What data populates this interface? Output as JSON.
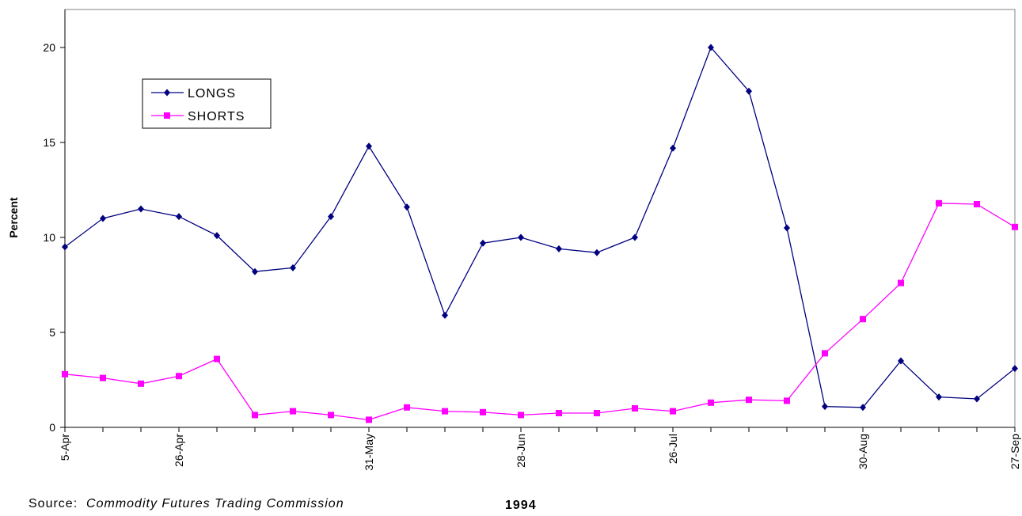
{
  "chart_data": {
    "type": "line",
    "title": "",
    "ylabel": "Percent",
    "xlabel": "1994",
    "ylim": [
      0,
      22
    ],
    "yticks": [
      0,
      5,
      10,
      15,
      20
    ],
    "x": [
      "5-Apr",
      "12-Apr",
      "19-Apr",
      "26-Apr",
      "3-May",
      "10-May",
      "17-May",
      "24-May",
      "31-May",
      "7-Jun",
      "14-Jun",
      "21-Jun",
      "28-Jun",
      "5-Jul",
      "12-Jul",
      "19-Jul",
      "26-Jul",
      "2-Aug",
      "9-Aug",
      "16-Aug",
      "23-Aug",
      "30-Aug",
      "6-Sep",
      "13-Sep",
      "20-Sep",
      "27-Sep"
    ],
    "xtick_labels": [
      "5-Apr",
      "",
      "",
      "26-Apr",
      "",
      "",
      "",
      "",
      "31-May",
      "",
      "",
      "",
      "28-Jun",
      "",
      "",
      "",
      "26-Jul",
      "",
      "",
      "",
      "",
      "30-Aug",
      "",
      "",
      "",
      "27-Sep"
    ],
    "series": [
      {
        "name": "LONGS",
        "color": "#000080",
        "marker": "diamond",
        "values": [
          9.5,
          11.0,
          11.5,
          11.1,
          10.1,
          8.2,
          8.4,
          11.1,
          14.8,
          11.6,
          5.9,
          9.7,
          10.0,
          9.4,
          9.2,
          10.0,
          14.7,
          20.0,
          17.7,
          10.5,
          1.1,
          1.05,
          3.5,
          1.6,
          1.5,
          3.1
        ]
      },
      {
        "name": "SHORTS",
        "color": "#ff00ff",
        "marker": "square",
        "values": [
          2.8,
          2.6,
          2.3,
          2.7,
          3.6,
          0.65,
          0.85,
          0.65,
          0.4,
          1.05,
          0.85,
          0.8,
          0.65,
          0.75,
          0.75,
          1.0,
          0.85,
          1.3,
          1.45,
          1.4,
          3.9,
          5.7,
          7.6,
          11.8,
          11.75,
          10.55
        ]
      }
    ],
    "legend_position": "top-left",
    "grid": false
  },
  "footer": {
    "source_prefix": "Source:",
    "source_name": "Commodity Futures Trading Commission",
    "year": "1994"
  }
}
